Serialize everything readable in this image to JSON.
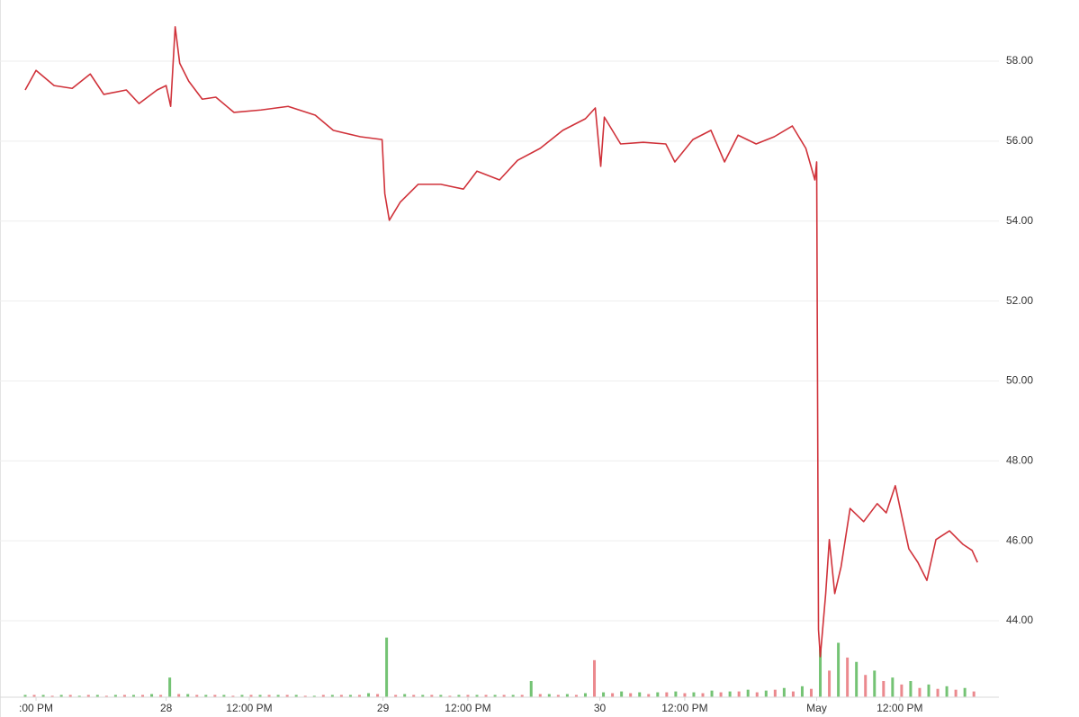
{
  "chart_data": {
    "type": "line",
    "xlim": [
      0,
      108
    ],
    "ylim": [
      42.1,
      59.5
    ],
    "y2lim": [
      0,
      800
    ],
    "grid": true,
    "xticks": [
      {
        "value": 1.2,
        "label": ":00 PM"
      },
      {
        "value": 15.6,
        "label": "28"
      },
      {
        "value": 24.8,
        "label": "12:00 PM"
      },
      {
        "value": 39.6,
        "label": "29"
      },
      {
        "value": 49.0,
        "label": "12:00 PM"
      },
      {
        "value": 63.6,
        "label": "30"
      },
      {
        "value": 73.0,
        "label": "12:00 PM"
      },
      {
        "value": 87.6,
        "label": "May"
      },
      {
        "value": 96.8,
        "label": "12:00 PM"
      }
    ],
    "yticks": [
      {
        "value": 44,
        "label": "44.00"
      },
      {
        "value": 46,
        "label": "46.00"
      },
      {
        "value": 48,
        "label": "48.00"
      },
      {
        "value": 50,
        "label": "50.00"
      },
      {
        "value": 52,
        "label": "52.00"
      },
      {
        "value": 54,
        "label": "54.00"
      },
      {
        "value": 56,
        "label": "56.00"
      },
      {
        "value": 58,
        "label": "58.00"
      }
    ],
    "series": [
      {
        "color": "#d0323a",
        "x": [
          0,
          1.2,
          3.2,
          5.2,
          7.2,
          8.7,
          11.2,
          12.6,
          14.6,
          15.6,
          16.1,
          16.6,
          17.1,
          18.1,
          19.6,
          21.1,
          23.1,
          26.1,
          29.1,
          32.1,
          34.1,
          37.1,
          39.5,
          39.8,
          40.3,
          41.5,
          43.5,
          46.0,
          48.5,
          50.0,
          52.5,
          54.5,
          57.0,
          59.5,
          62.0,
          63.1,
          63.7,
          64.1,
          65.9,
          68.4,
          70.9,
          71.9,
          73.9,
          75.9,
          77.4,
          78.9,
          80.9,
          82.9,
          84.9,
          86.4,
          87.4,
          87.6,
          87.8,
          88.0,
          88.6,
          89.0,
          89.6,
          90.3,
          91.3,
          92.8,
          94.3,
          95.3,
          96.3,
          97.8,
          98.8,
          99.8,
          100.8,
          102.3,
          103.8,
          104.8,
          105.4
        ],
        "values": [
          57.28,
          57.77,
          57.39,
          57.32,
          57.68,
          57.17,
          57.28,
          56.94,
          57.28,
          57.39,
          56.87,
          58.86,
          57.95,
          57.5,
          57.05,
          57.1,
          56.72,
          56.78,
          56.87,
          56.65,
          56.27,
          56.11,
          56.04,
          54.69,
          54.02,
          54.47,
          54.92,
          54.92,
          54.8,
          55.25,
          55.03,
          55.52,
          55.82,
          56.27,
          56.56,
          56.83,
          55.37,
          56.6,
          55.93,
          55.97,
          55.93,
          55.48,
          56.04,
          56.27,
          55.48,
          56.15,
          55.93,
          56.11,
          56.38,
          55.82,
          55.03,
          55.48,
          43.78,
          43.1,
          44.68,
          46.03,
          44.68,
          45.35,
          46.81,
          46.48,
          46.93,
          46.7,
          47.38,
          45.8,
          45.46,
          45.01,
          46.03,
          46.25,
          45.91,
          45.76,
          45.46
        ]
      },
      {
        "type": "bar",
        "axis": "y2",
        "color": "#5cb85c",
        "x": [
          0,
          2,
          4,
          6,
          8,
          10,
          12,
          14,
          16,
          18,
          20,
          22,
          24,
          26,
          28,
          30,
          32,
          34,
          36,
          38,
          40,
          42,
          44,
          46,
          48,
          50,
          52,
          54,
          56,
          58,
          60,
          62,
          64,
          66,
          68,
          70,
          72,
          74,
          76,
          78,
          80,
          82,
          84,
          86,
          88,
          90,
          92,
          94,
          96,
          98,
          100,
          102,
          104
        ],
        "values": [
          2,
          2,
          2,
          1,
          2,
          2,
          2,
          3,
          22,
          3,
          2,
          2,
          2,
          2,
          2,
          2,
          1,
          2,
          2,
          4,
          68,
          3,
          2,
          2,
          2,
          2,
          2,
          2,
          18,
          3,
          3,
          4,
          5,
          6,
          5,
          5,
          6,
          5,
          7,
          6,
          8,
          7,
          10,
          12,
          55,
          62,
          40,
          30,
          22,
          18,
          14,
          12,
          10
        ]
      },
      {
        "type": "bar",
        "axis": "y2",
        "color": "#e8747a",
        "x": [
          1,
          3,
          5,
          7,
          9,
          11,
          13,
          15,
          17,
          19,
          21,
          23,
          25,
          27,
          29,
          31,
          33,
          35,
          37,
          39,
          41,
          43,
          45,
          47,
          49,
          51,
          53,
          55,
          57,
          59,
          61,
          63,
          65,
          67,
          69,
          71,
          73,
          75,
          77,
          79,
          81,
          83,
          85,
          87,
          89,
          91,
          93,
          95,
          97,
          99,
          101,
          103,
          105
        ],
        "values": [
          2,
          1,
          2,
          2,
          1,
          2,
          2,
          2,
          3,
          2,
          2,
          1,
          2,
          2,
          2,
          1,
          2,
          2,
          2,
          3,
          2,
          2,
          2,
          1,
          2,
          2,
          2,
          2,
          3,
          2,
          2,
          42,
          4,
          4,
          3,
          5,
          4,
          4,
          5,
          6,
          5,
          8,
          6,
          9,
          30,
          45,
          25,
          18,
          14,
          10,
          9,
          8,
          6
        ]
      }
    ]
  }
}
